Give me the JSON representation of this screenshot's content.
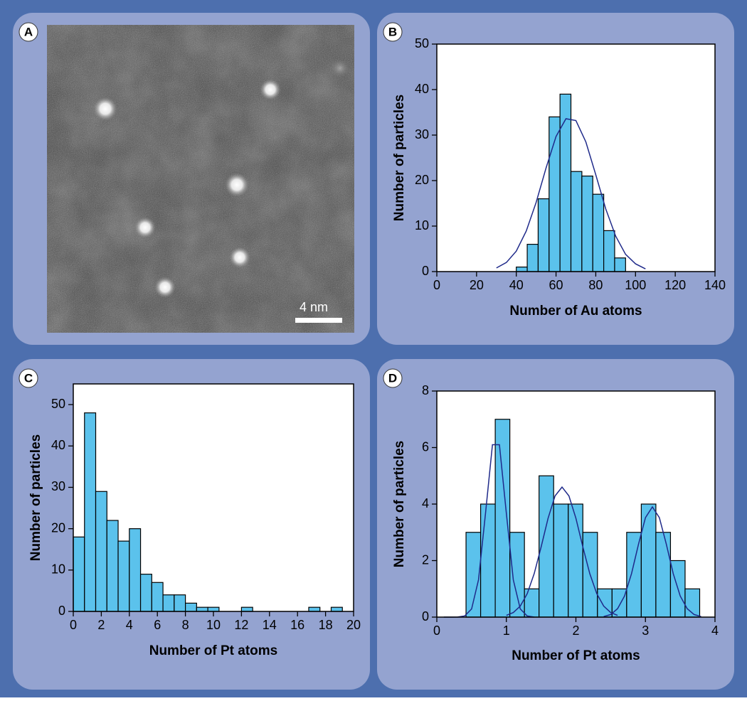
{
  "chart_data": [
    {
      "type": "image",
      "label": "A",
      "scale_bar": "4 nm"
    },
    {
      "type": "histogram",
      "label": "B",
      "xlabel": "Number of Au atoms",
      "ylabel": "Number of particles",
      "bins": [
        40,
        45.5,
        51,
        56.5,
        62,
        67.5,
        73,
        78.5,
        84,
        89.5,
        95
      ],
      "values": [
        1,
        6,
        16,
        34,
        39,
        22,
        21,
        17,
        9,
        3
      ],
      "fits": [
        {
          "x": [
            30,
            35,
            40,
            45,
            50,
            55,
            60,
            65,
            70,
            75,
            80,
            85,
            90,
            95,
            100,
            105
          ],
          "values": [
            0.8,
            2.0,
            4.5,
            8.9,
            15.2,
            22.8,
            29.7,
            33.6,
            33.2,
            28.5,
            21.3,
            13.8,
            7.8,
            3.8,
            1.7,
            0.6
          ]
        }
      ],
      "xlim": [
        0,
        140
      ],
      "ylim": [
        0,
        50
      ],
      "xticks": [
        0,
        20,
        40,
        60,
        80,
        100,
        120,
        140
      ],
      "yticks": [
        0,
        10,
        20,
        30,
        40,
        50
      ],
      "color": "#5bc2ec",
      "fit_color": "#1f2a8a"
    },
    {
      "type": "histogram",
      "label": "C",
      "xlabel": "Number of Pt atoms",
      "ylabel": "Number of particles",
      "bins": [
        0,
        0.8,
        1.6,
        2.4,
        3.2,
        4,
        4.8,
        5.6,
        6.4,
        7.2,
        8,
        8.8,
        9.6,
        10.4,
        11.2,
        12,
        12.8,
        13.6,
        14.4,
        15.2,
        16,
        16.8,
        17.6,
        18.4,
        19.2
      ],
      "values": [
        18,
        48,
        29,
        22,
        17,
        20,
        9,
        7,
        4,
        4,
        2,
        1,
        1,
        0,
        0,
        1,
        0,
        0,
        0,
        0,
        0,
        1,
        0,
        1
      ],
      "xlim": [
        0,
        20
      ],
      "ylim": [
        0,
        55
      ],
      "xticks": [
        0,
        2,
        4,
        6,
        8,
        10,
        12,
        14,
        16,
        18,
        20
      ],
      "yticks": [
        0,
        10,
        20,
        30,
        40,
        50
      ],
      "color": "#5bc2ec"
    },
    {
      "type": "histogram",
      "label": "D",
      "xlabel": "Number of Pt atoms",
      "ylabel": "Number of particles",
      "bins": [
        0.42,
        0.63,
        0.84,
        1.05,
        1.26,
        1.47,
        1.68,
        1.89,
        2.1,
        2.31,
        2.52,
        2.73,
        2.94,
        3.15,
        3.36,
        3.57,
        3.78
      ],
      "values": [
        3,
        4,
        7,
        3,
        1,
        5,
        4,
        4,
        3,
        1,
        1,
        3,
        4,
        3,
        2,
        1
      ],
      "fits": [
        {
          "x": [
            0.1,
            0.2,
            0.3,
            0.4,
            0.5,
            0.6,
            0.7,
            0.8,
            0.9,
            1.0,
            1.1,
            1.2,
            1.3,
            1.4
          ],
          "values": [
            0,
            0,
            0.003,
            0.04,
            0.29,
            1.32,
            3.66,
            6.1,
            6.1,
            3.66,
            1.32,
            0.29,
            0.04,
            0
          ]
        },
        {
          "x": [
            1.0,
            1.1,
            1.2,
            1.3,
            1.4,
            1.5,
            1.6,
            1.7,
            1.8,
            1.9,
            2.0,
            2.1,
            2.2,
            2.3,
            2.4,
            2.5,
            2.6
          ],
          "values": [
            0.06,
            0.16,
            0.39,
            0.83,
            1.54,
            2.48,
            3.5,
            4.29,
            4.6,
            4.29,
            3.5,
            2.48,
            1.54,
            0.83,
            0.39,
            0.16,
            0.06
          ]
        },
        {
          "x": [
            2.4,
            2.5,
            2.6,
            2.7,
            2.8,
            2.9,
            3.0,
            3.1,
            3.2,
            3.3,
            3.4,
            3.5,
            3.6,
            3.7,
            3.8
          ],
          "values": [
            0.02,
            0.09,
            0.3,
            0.75,
            1.54,
            2.58,
            3.52,
            3.9,
            3.52,
            2.58,
            1.54,
            0.75,
            0.3,
            0.09,
            0.02
          ]
        }
      ],
      "xlim": [
        0,
        4
      ],
      "ylim": [
        0,
        8
      ],
      "xticks": [
        0,
        1,
        2,
        3,
        4
      ],
      "yticks": [
        0,
        2,
        4,
        6,
        8
      ],
      "color": "#5bc2ec",
      "fit_color": "#1f2a8a"
    }
  ]
}
